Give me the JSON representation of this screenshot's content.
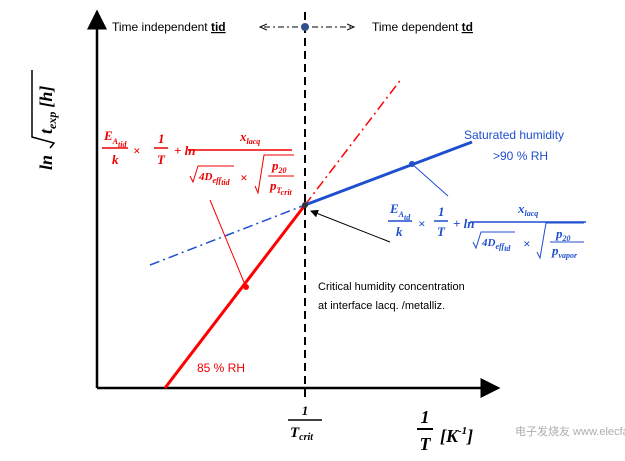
{
  "header": {
    "left": "Time independent",
    "left_tag": "tid",
    "right": "Time dependent",
    "right_tag": "td"
  },
  "y_axis": {
    "ln": "ln",
    "t": "t",
    "exp": "exp",
    "unit": "[h]"
  },
  "x_axis": {
    "crit_num": "1",
    "crit_den": "T",
    "crit_sub": "crit",
    "num": "1",
    "den": "T",
    "unit": "[K",
    "unit_exp": "-1",
    "unit_close": "]"
  },
  "red_formula": {
    "e": "E",
    "e_sub": "A",
    "e_subsub": "tid",
    "k": "k",
    "times": "×",
    "one": "1",
    "t": "T",
    "plus_ln": "+ ln",
    "x": "x",
    "x_sub": "lacq",
    "d": "4D",
    "d_sub": "eff",
    "d_subsub": "tid",
    "times2": "×",
    "p20": "p",
    "p20_sub": "20",
    "p": "p",
    "p_sub": "T",
    "p_subsub": "crit"
  },
  "blue_formula": {
    "e": "E",
    "e_sub": "A",
    "e_subsub": "td",
    "k": "k",
    "times": "×",
    "one": "1",
    "t": "T",
    "plus_ln": "+ ln",
    "x": "x",
    "x_sub": "lacq",
    "d": "4D",
    "d_sub": "eff",
    "d_subsub": "td",
    "times2": "×",
    "p20": "p",
    "p20_sub": "20",
    "p": "p",
    "p_sub": "vapor"
  },
  "labels": {
    "saturated": "Saturated humidity",
    "saturated_rh": ">90 % RH",
    "rh85": "85 % RH",
    "critical_1": "Critical humidity concentration",
    "critical_2": "at interface lacq. /metalliz."
  },
  "watermark": "电子发烧友 www.elecfans.com"
}
